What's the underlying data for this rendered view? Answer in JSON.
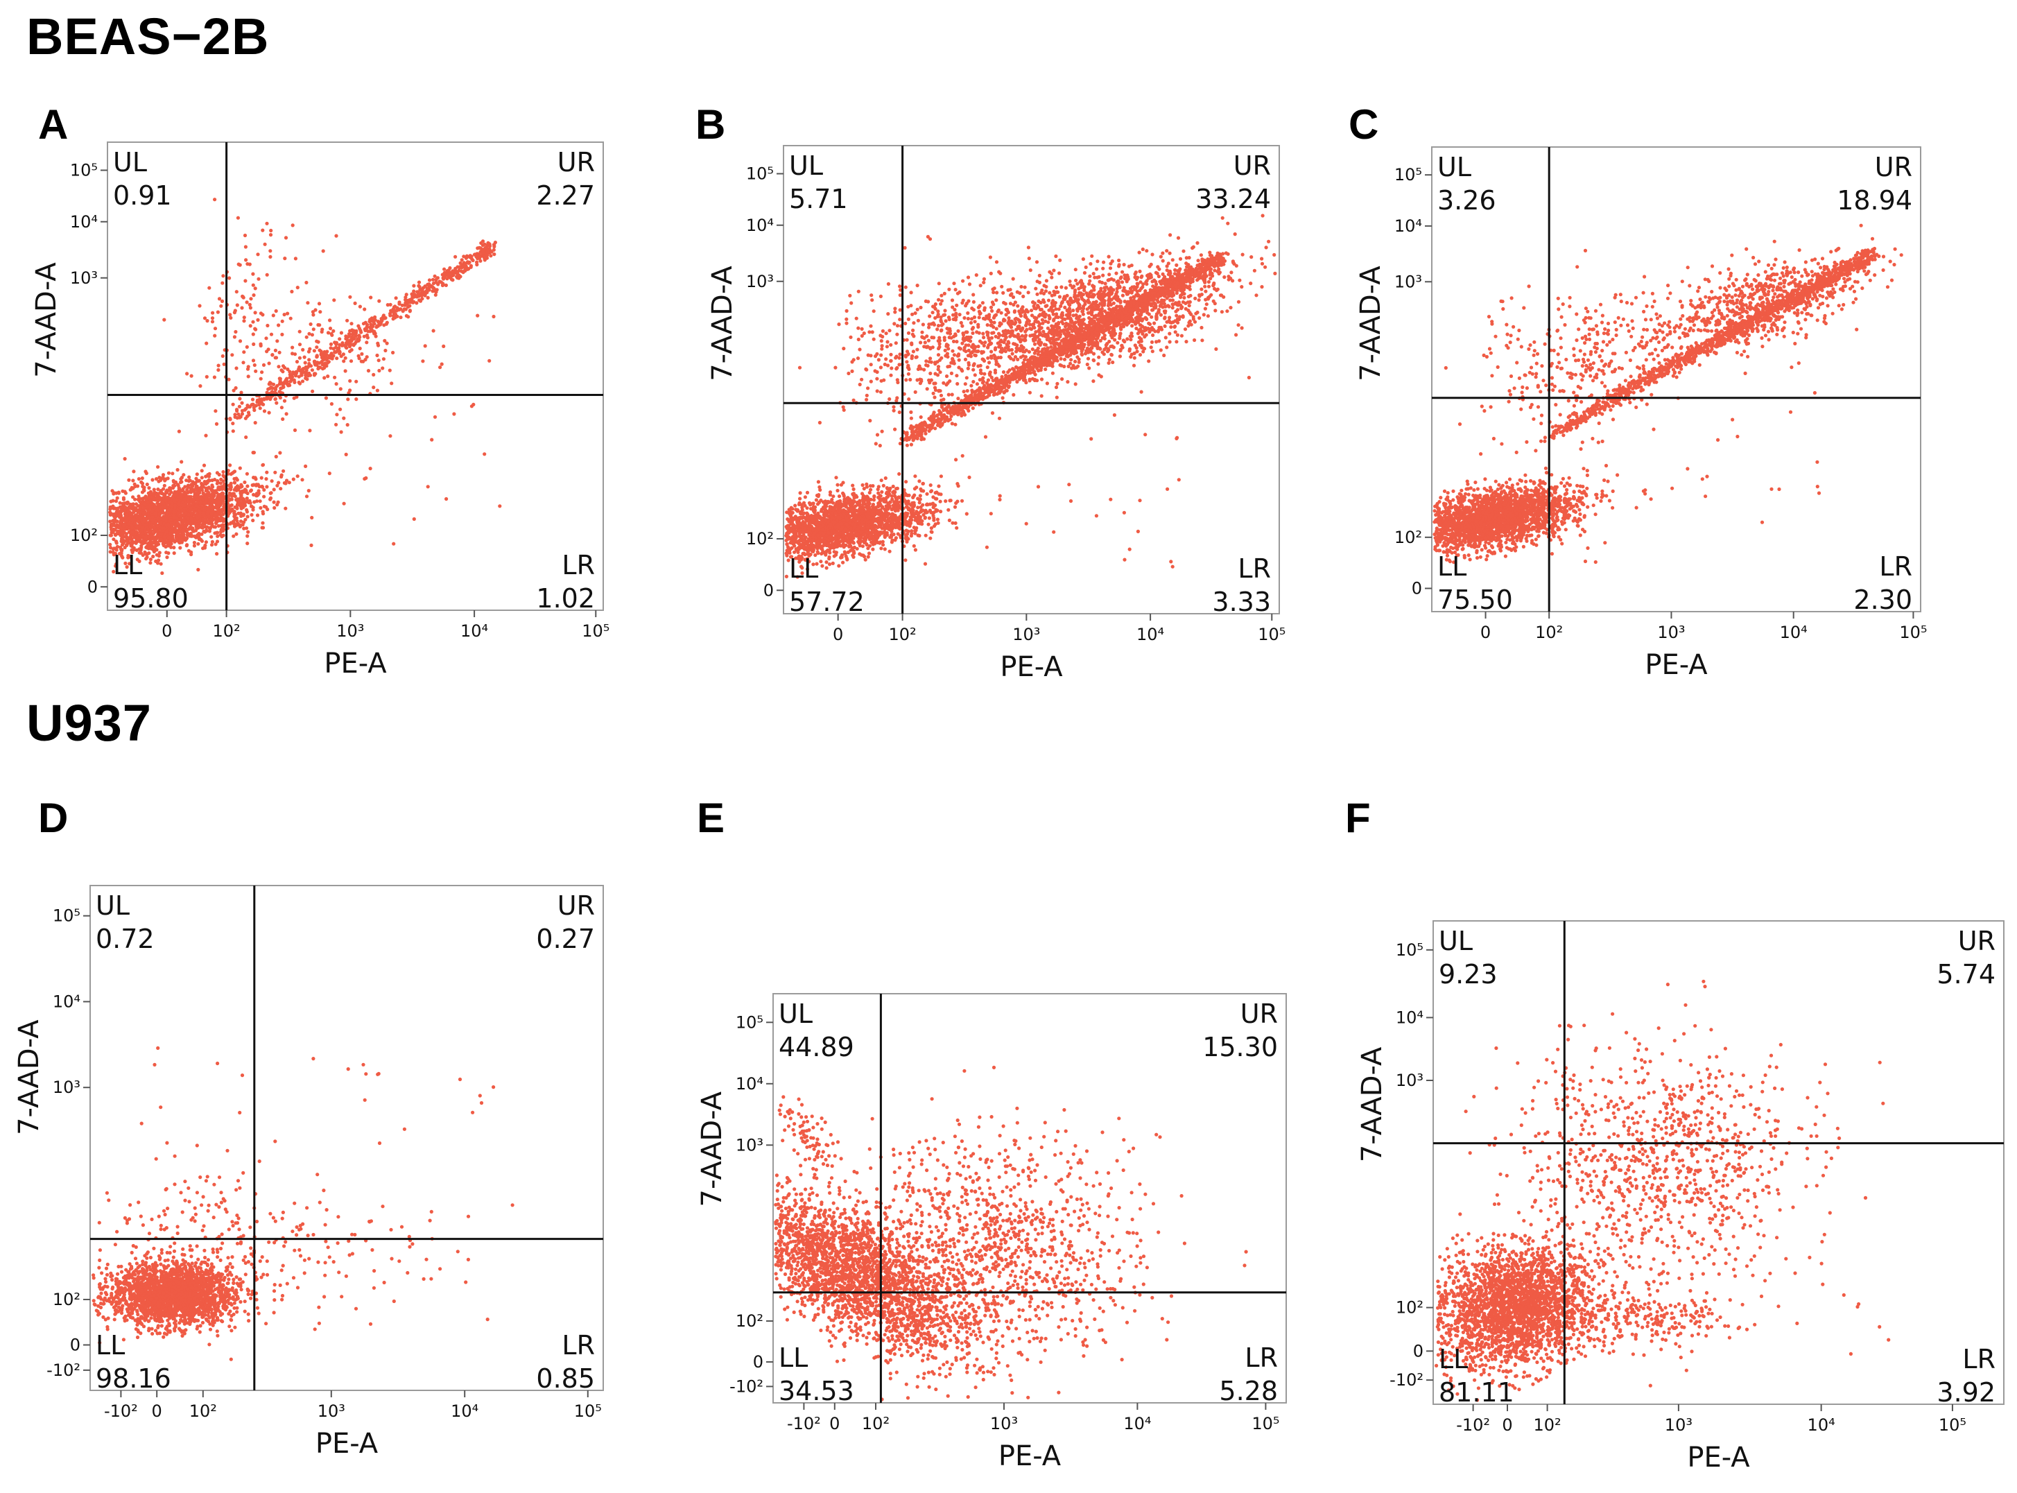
{
  "sections": {
    "beas": "BEAS−2B",
    "u937": "U937"
  },
  "colors": {
    "dots": "#ef5b45",
    "lines": "#111111",
    "frame": "#9a9a9a"
  },
  "chart_data": [
    {
      "type": "scatter",
      "panel": "A",
      "section": "BEAS−2B",
      "xlabel": "PE-A",
      "ylabel": "7-AAD-A",
      "x_ticks": [
        "0",
        "10²",
        "10³",
        "10⁴",
        "10⁵"
      ],
      "y_ticks": [
        "0",
        "10²",
        "10³",
        "10⁴",
        "10⁵"
      ],
      "quadrants": {
        "UL": "0.91",
        "UR": "2.27",
        "LL": "95.80",
        "LR": "1.02"
      }
    },
    {
      "type": "scatter",
      "panel": "B",
      "section": "BEAS−2B",
      "xlabel": "PE-A",
      "ylabel": "7-AAD-A",
      "x_ticks": [
        "0",
        "10²",
        "10³",
        "10⁴",
        "10⁵"
      ],
      "y_ticks": [
        "0",
        "10²",
        "10³",
        "10⁴",
        "10⁵"
      ],
      "quadrants": {
        "UL": "5.71",
        "UR": "33.24",
        "LL": "57.72",
        "LR": "3.33"
      }
    },
    {
      "type": "scatter",
      "panel": "C",
      "section": "BEAS−2B",
      "xlabel": "PE-A",
      "ylabel": "7-AAD-A",
      "x_ticks": [
        "0",
        "10²",
        "10³",
        "10⁴",
        "10⁵"
      ],
      "y_ticks": [
        "0",
        "10²",
        "10³",
        "10⁴",
        "10⁵"
      ],
      "quadrants": {
        "UL": "3.26",
        "UR": "18.94",
        "LL": "75.50",
        "LR": "2.30"
      }
    },
    {
      "type": "scatter",
      "panel": "D",
      "section": "U937",
      "xlabel": "PE-A",
      "ylabel": "7-AAD-A",
      "x_ticks": [
        "-10²",
        "0",
        "10²",
        "10³",
        "10⁴",
        "10⁵"
      ],
      "y_ticks": [
        "-10²",
        "0",
        "10²",
        "10³",
        "10⁴",
        "10⁵"
      ],
      "quadrants": {
        "UL": "0.72",
        "UR": "0.27",
        "LL": "98.16",
        "LR": "0.85"
      }
    },
    {
      "type": "scatter",
      "panel": "E",
      "section": "U937",
      "xlabel": "PE-A",
      "ylabel": "7-AAD-A",
      "x_ticks": [
        "-10²",
        "0",
        "10²",
        "10³",
        "10⁴",
        "10⁵"
      ],
      "y_ticks": [
        "-10²",
        "0",
        "10²",
        "10³",
        "10⁴",
        "10⁵"
      ],
      "quadrants": {
        "UL": "44.89",
        "UR": "15.30",
        "LL": "34.53",
        "LR": "5.28"
      }
    },
    {
      "type": "scatter",
      "panel": "F",
      "section": "U937",
      "xlabel": "PE-A",
      "ylabel": "7-AAD-A",
      "x_ticks": [
        "-10²",
        "0",
        "10²",
        "10³",
        "10⁴",
        "10⁵"
      ],
      "y_ticks": [
        "-10²",
        "0",
        "10²",
        "10³",
        "10⁴",
        "10⁵"
      ],
      "quadrants": {
        "UL": "9.23",
        "UR": "5.74",
        "LL": "81.11",
        "LR": "3.92"
      }
    }
  ]
}
